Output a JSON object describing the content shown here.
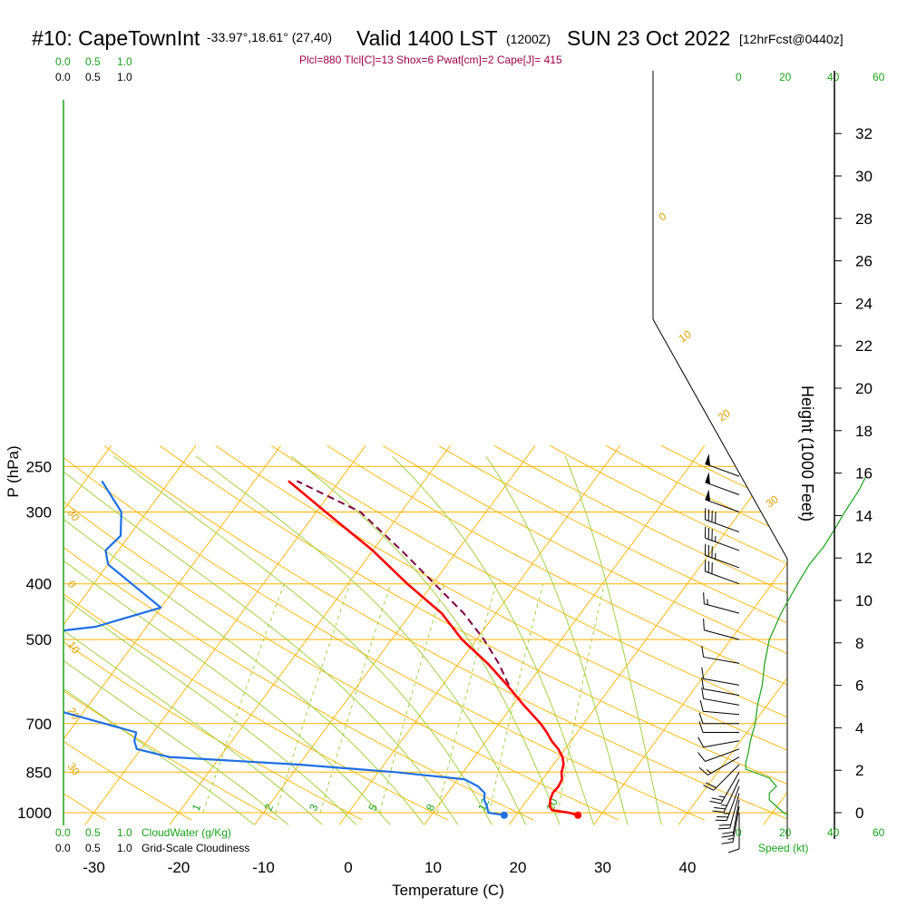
{
  "header": {
    "station": "#10: CapeTownInt",
    "coords": "-33.97°,18.61° (27,40)",
    "valid": "Valid 1400 LST",
    "utc": "(1200Z)",
    "date": "SUN 23 Oct 2022",
    "forecast": "[12hrFcst@0440z]",
    "indices": "Plcl=880 Tlcl[C]=13 Shox=6 Pwat[cm]=2 Cape[J]= 415"
  },
  "scales": {
    "cloudwater_ticks_top": [
      "0.0",
      "0.5",
      "1.0"
    ],
    "cloudiness_ticks_top": [
      "0.0",
      "0.5",
      "1.0"
    ],
    "cloudwater_ticks_bottom": [
      "0.0",
      "0.5",
      "1.0"
    ],
    "cloudiness_ticks_bottom": [
      "0.0",
      "0.5",
      "1.0"
    ],
    "cloudwater_label": "CloudWater (g/Kg)",
    "cloudiness_label": "Grid-Scale Cloudiness",
    "speed_ticks": [
      "0",
      "20",
      "40",
      "60"
    ],
    "speed_label": "Speed (kt)"
  },
  "colors": {
    "isotherm": "#ffb300",
    "isobar": "#ffb300",
    "dry_adiabat": "#ffb300",
    "moist_adiabat": "#9acd32",
    "mixing_ratio": "#9acd32",
    "temperature": "#ff0000",
    "dewpoint": "#1e6fe6",
    "parcel": "#800040",
    "cloud": "#1aa31a",
    "wind": "#000000"
  },
  "chart_data": {
    "type": "skew-t log-p sounding",
    "xlabel": "Temperature (C)",
    "ylabel": "P (hPa)",
    "right_label": "Height (1000 Feet)",
    "x_ticks": [
      -30,
      -20,
      -10,
      0,
      10,
      20,
      30,
      40
    ],
    "p_ticks": [
      250,
      300,
      400,
      500,
      700,
      850,
      1000
    ],
    "height_ticks_kft": [
      0,
      2,
      4,
      6,
      8,
      10,
      12,
      14,
      16,
      18,
      20,
      22,
      24,
      26,
      28,
      30,
      32
    ],
    "isotherm_labels": [
      -30,
      -20,
      -10,
      0,
      10,
      20,
      30
    ],
    "mixing_ratio_labels": [
      "1",
      "2",
      "3",
      "5",
      "8",
      "12",
      "20"
    ],
    "temperature": [
      {
        "p": 1010,
        "t": 27.3
      },
      {
        "p": 1000,
        "t": 26.0
      },
      {
        "p": 990,
        "t": 23.8
      },
      {
        "p": 975,
        "t": 23.2
      },
      {
        "p": 950,
        "t": 22.7
      },
      {
        "p": 925,
        "t": 22.4
      },
      {
        "p": 900,
        "t": 22.5
      },
      {
        "p": 875,
        "t": 22.3
      },
      {
        "p": 850,
        "t": 21.6
      },
      {
        "p": 825,
        "t": 21.2
      },
      {
        "p": 800,
        "t": 20.4
      },
      {
        "p": 775,
        "t": 19.2
      },
      {
        "p": 750,
        "t": 17.7
      },
      {
        "p": 725,
        "t": 16.4
      },
      {
        "p": 700,
        "t": 14.9
      },
      {
        "p": 650,
        "t": 11.3
      },
      {
        "p": 600,
        "t": 7.6
      },
      {
        "p": 550,
        "t": 3.4
      },
      {
        "p": 500,
        "t": -1.7
      },
      {
        "p": 450,
        "t": -6.4
      },
      {
        "p": 400,
        "t": -13.0
      },
      {
        "p": 350,
        "t": -20.0
      },
      {
        "p": 300,
        "t": -28.9
      },
      {
        "p": 265,
        "t": -36.0
      }
    ],
    "dewpoint": [
      {
        "p": 1010,
        "t": 18.6
      },
      {
        "p": 1000,
        "t": 16.5
      },
      {
        "p": 975,
        "t": 15.8
      },
      {
        "p": 950,
        "t": 14.9
      },
      {
        "p": 925,
        "t": 14.4
      },
      {
        "p": 900,
        "t": 13.0
      },
      {
        "p": 875,
        "t": 10.8
      },
      {
        "p": 850,
        "t": 2.0
      },
      {
        "p": 825,
        "t": -10.0
      },
      {
        "p": 800,
        "t": -26.0
      },
      {
        "p": 775,
        "t": -30.5
      },
      {
        "p": 750,
        "t": -31.5
      },
      {
        "p": 725,
        "t": -32.0
      },
      {
        "p": 700,
        "t": -36.5
      },
      {
        "p": 650,
        "t": -46.0
      },
      {
        "p": 600,
        "t": -60.0
      },
      {
        "p": 550,
        "t": -70.0
      },
      {
        "p": 500,
        "t": -58.0
      },
      {
        "p": 475,
        "t": -46.0
      },
      {
        "p": 440,
        "t": -40.0
      },
      {
        "p": 400,
        "t": -45.5
      },
      {
        "p": 370,
        "t": -50.0
      },
      {
        "p": 350,
        "t": -51.5
      },
      {
        "p": 330,
        "t": -51.0
      },
      {
        "p": 300,
        "t": -53.0
      },
      {
        "p": 265,
        "t": -58.0
      }
    ],
    "parcel": [
      {
        "p": 600,
        "t": 7.8
      },
      {
        "p": 550,
        "t": 4.7
      },
      {
        "p": 500,
        "t": 0.9
      },
      {
        "p": 450,
        "t": -3.8
      },
      {
        "p": 400,
        "t": -9.8
      },
      {
        "p": 350,
        "t": -16.6
      },
      {
        "p": 300,
        "t": -24.8
      },
      {
        "p": 265,
        "t": -35.0
      }
    ],
    "surface_points": {
      "temperature": 27.3,
      "dewpoint": 18.6
    },
    "winds": [
      {
        "p": 1000,
        "dir": 180,
        "spd": 10
      },
      {
        "p": 975,
        "dir": 190,
        "spd": 15
      },
      {
        "p": 950,
        "dir": 190,
        "spd": 20
      },
      {
        "p": 925,
        "dir": 195,
        "spd": 20
      },
      {
        "p": 900,
        "dir": 200,
        "spd": 25
      },
      {
        "p": 875,
        "dir": 205,
        "spd": 25
      },
      {
        "p": 850,
        "dir": 210,
        "spd": 25
      },
      {
        "p": 825,
        "dir": 225,
        "spd": 20
      },
      {
        "p": 800,
        "dir": 240,
        "spd": 15
      },
      {
        "p": 775,
        "dir": 250,
        "spd": 10
      },
      {
        "p": 750,
        "dir": 260,
        "spd": 10
      },
      {
        "p": 725,
        "dir": 270,
        "spd": 10
      },
      {
        "p": 700,
        "dir": 270,
        "spd": 10
      },
      {
        "p": 675,
        "dir": 275,
        "spd": 10
      },
      {
        "p": 650,
        "dir": 280,
        "spd": 10
      },
      {
        "p": 625,
        "dir": 280,
        "spd": 10
      },
      {
        "p": 600,
        "dir": 280,
        "spd": 10
      },
      {
        "p": 550,
        "dir": 280,
        "spd": 10
      },
      {
        "p": 500,
        "dir": 285,
        "spd": 10
      },
      {
        "p": 450,
        "dir": 285,
        "spd": 15
      },
      {
        "p": 400,
        "dir": 290,
        "spd": 30
      },
      {
        "p": 375,
        "dir": 290,
        "spd": 35
      },
      {
        "p": 350,
        "dir": 290,
        "spd": 35
      },
      {
        "p": 325,
        "dir": 290,
        "spd": 40
      },
      {
        "p": 300,
        "dir": 290,
        "spd": 50
      },
      {
        "p": 280,
        "dir": 290,
        "spd": 50
      },
      {
        "p": 260,
        "dir": 290,
        "spd": 50
      }
    ],
    "wind_speed_profile": [
      {
        "p": 1010,
        "spd": 20
      },
      {
        "p": 1000,
        "spd": 18
      },
      {
        "p": 975,
        "spd": 15
      },
      {
        "p": 950,
        "spd": 12
      },
      {
        "p": 925,
        "spd": 12
      },
      {
        "p": 900,
        "spd": 15
      },
      {
        "p": 870,
        "spd": 12
      },
      {
        "p": 840,
        "spd": 2
      },
      {
        "p": 820,
        "spd": 2
      },
      {
        "p": 790,
        "spd": 3
      },
      {
        "p": 750,
        "spd": 4
      },
      {
        "p": 700,
        "spd": 6
      },
      {
        "p": 650,
        "spd": 7
      },
      {
        "p": 600,
        "spd": 9
      },
      {
        "p": 550,
        "spd": 10
      },
      {
        "p": 500,
        "spd": 12
      },
      {
        "p": 450,
        "spd": 17
      },
      {
        "p": 400,
        "spd": 24
      },
      {
        "p": 370,
        "spd": 29
      },
      {
        "p": 345,
        "spd": 35
      },
      {
        "p": 320,
        "spd": 40
      },
      {
        "p": 300,
        "spd": 44
      },
      {
        "p": 275,
        "spd": 50
      },
      {
        "p": 260,
        "spd": 53
      }
    ]
  }
}
